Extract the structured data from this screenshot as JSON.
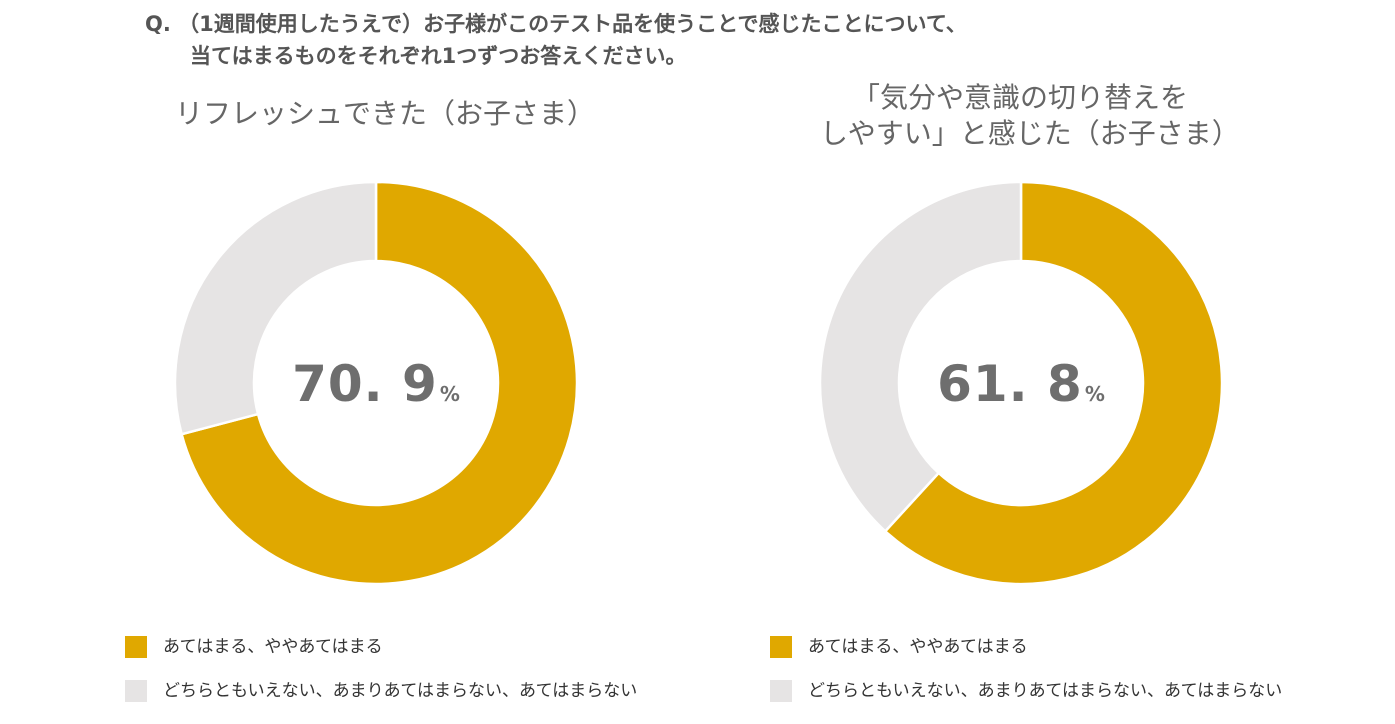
{
  "question": {
    "line1": "Q. （1週間使用したうえで）お子様がこのテスト品を使うことで感じたことについて、",
    "line2": "当てはまるものをそれぞれ1つずつお答えください。"
  },
  "colors": {
    "agree": "#E0A800",
    "neutral": "#E6E4E4"
  },
  "chart_data": [
    {
      "type": "pie",
      "title_lines": [
        "リフレッシュできた（お子さま）"
      ],
      "center_value": "70. 9",
      "center_unit": "%",
      "categories": [
        "あてはまる、ややあてはまる",
        "どちらともいえない、あまりあてはまらない、あてはまらない"
      ],
      "values": [
        70.9,
        29.1
      ],
      "colors": [
        "#E0A800",
        "#E6E4E4"
      ],
      "legend_position": "bottom-left"
    },
    {
      "type": "pie",
      "title_lines": [
        "「気分や意識の切り替えを",
        "しやすい」と感じた（お子さま）"
      ],
      "center_value": "61. 8",
      "center_unit": "%",
      "categories": [
        "あてはまる、ややあてはまる",
        "どちらともいえない、あまりあてはまらない、あてはまらない"
      ],
      "values": [
        61.8,
        38.2
      ],
      "colors": [
        "#E0A800",
        "#E6E4E4"
      ],
      "legend_position": "bottom-left"
    }
  ]
}
